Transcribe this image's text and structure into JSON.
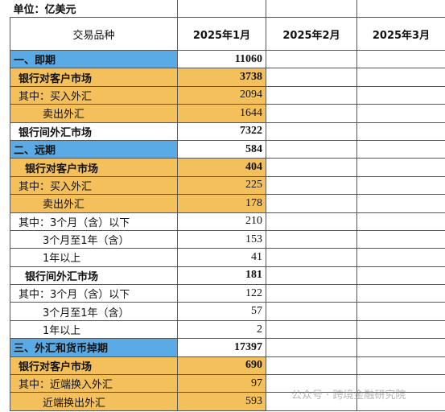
{
  "unit": "单位：亿美元",
  "table": {
    "columns": [
      "交易品种",
      "2025年1月",
      "2025年2月",
      "2025年3月"
    ],
    "rows": [
      {
        "label": "一、即期",
        "value": 11060,
        "color": "#5aaae6",
        "bold": true
      },
      {
        "label": "银行对客户市场",
        "value": 3738,
        "color": "#f4c05c",
        "bold": true
      },
      {
        "label": "其中：买入外汇",
        "value": 2094,
        "color": "#f4c05c",
        "bold": false
      },
      {
        "label": "卖出外汇",
        "value": 1644,
        "color": "#f4c05c",
        "bold": false
      },
      {
        "label": "银行间外汇市场",
        "value": 7322,
        "color": "#ffffff",
        "bold": true
      },
      {
        "label": "二、远期",
        "value": 584,
        "color": "#5aaae6",
        "bold": true
      },
      {
        "label": "银行对客户市场",
        "value": 404,
        "color": "#f4c05c",
        "bold": true
      },
      {
        "label": "其中：买入外汇",
        "value": 225,
        "color": "#f4c05c",
        "bold": false
      },
      {
        "label": "卖出外汇",
        "value": 178,
        "color": "#f4c05c",
        "bold": false
      },
      {
        "label": "其中：3个月（含）以下",
        "value": 210,
        "color": "#ffffff",
        "bold": false
      },
      {
        "label": "3个月至1年（含）",
        "value": 153,
        "color": "#ffffff",
        "bold": false
      },
      {
        "label": "1年以上",
        "value": 41,
        "color": "#ffffff",
        "bold": false
      },
      {
        "label": "银行间外汇市场",
        "value": 181,
        "color": "#ffffff",
        "bold": true
      },
      {
        "label": "其中：3个月（含）以下",
        "value": 122,
        "color": "#ffffff",
        "bold": false
      },
      {
        "label": "3个月至1年（含）",
        "value": 57,
        "color": "#ffffff",
        "bold": false
      },
      {
        "label": "1年以上",
        "value": 2,
        "color": "#ffffff",
        "bold": false
      },
      {
        "label": "三、外汇和货币掉期",
        "value": 17397,
        "color": "#5aaae6",
        "bold": true
      },
      {
        "label": "银行对客户市场",
        "value": 690,
        "color": "#f4c05c",
        "bold": true
      },
      {
        "label": "其中：近端换入外汇",
        "value": 97,
        "color": "#f4c05c",
        "bold": false
      },
      {
        "label": "近端换出外汇",
        "value": 593,
        "color": "#f4c05c",
        "bold": false
      }
    ]
  },
  "watermark": "公众号 · 跨境金融研究院"
}
